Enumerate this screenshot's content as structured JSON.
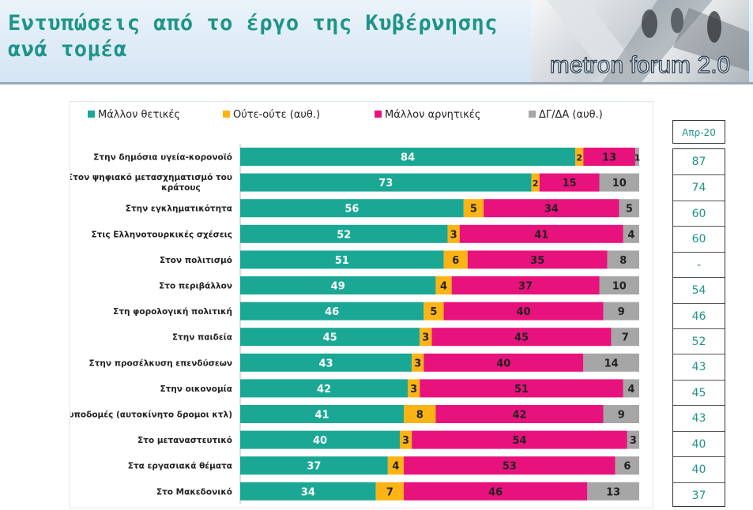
{
  "header": {
    "title_line1": "Εντυπώσεις από το έργο της Κυβέρνησης",
    "title_line2": "ανά τομέα",
    "logo_text": "metron forum 2.0"
  },
  "colors": {
    "positive": "#1aa894",
    "neutral": "#fcb415",
    "negative": "#e8127c",
    "dkna": "#a6a6a6",
    "title": "#1f9488"
  },
  "comparison": {
    "header": "Απρ-20",
    "values": [
      "87",
      "74",
      "60",
      "60",
      "-",
      "54",
      "46",
      "52",
      "43",
      "45",
      "43",
      "40",
      "40",
      "37"
    ]
  },
  "chart_data": {
    "type": "bar",
    "orientation": "horizontal",
    "stacked": true,
    "categories": [
      "Στην δημόσια υγεία-κορονοϊό",
      "Στον ψηφιακό μετασχηματισμό του κράτους",
      "Στην εγκληματικότητα",
      "Στις Ελληνοτουρκικές σχέσεις",
      "Στον πολιτισμό",
      "Στο περιβάλλον",
      "Στη φορολογική πολιτική",
      "Στην παιδεία",
      "Στην προσέλκυση επενδύσεων",
      "Στην οικονομία",
      "Στις υποδομές (αυτοκίνητο δρομοι κτλ)",
      "Στο μεταναστευτικό",
      "Στα εργασιακά θέματα",
      "Στο Μακεδονικό"
    ],
    "series": [
      {
        "name": "Μάλλον θετικές",
        "color": "#1aa894",
        "values": [
          84,
          73,
          56,
          52,
          51,
          49,
          46,
          45,
          43,
          42,
          41,
          40,
          37,
          34
        ]
      },
      {
        "name": "Ούτε-ούτε  (αυθ.)",
        "color": "#fcb415",
        "values": [
          2,
          2,
          5,
          3,
          6,
          4,
          5,
          3,
          3,
          3,
          8,
          3,
          4,
          7
        ]
      },
      {
        "name": "Μάλλον αρνητικές",
        "color": "#e8127c",
        "values": [
          13,
          15,
          34,
          41,
          35,
          37,
          40,
          45,
          40,
          51,
          42,
          54,
          53,
          46
        ]
      },
      {
        "name": "ΔΓ/ΔΑ (αυθ.)",
        "color": "#a6a6a6",
        "values": [
          1,
          10,
          5,
          4,
          8,
          10,
          9,
          7,
          14,
          4,
          9,
          3,
          6,
          13
        ]
      }
    ],
    "legend_position": "top",
    "grid": false
  }
}
